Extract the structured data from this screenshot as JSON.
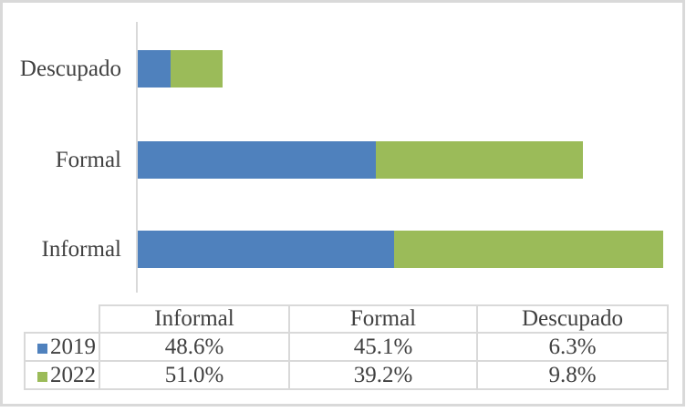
{
  "chart_data": {
    "type": "bar",
    "orientation": "horizontal",
    "stacked": true,
    "title": "",
    "xlabel": "",
    "ylabel": "",
    "grid": false,
    "xlim": [
      0,
      100
    ],
    "value_unit": "%",
    "categories": [
      "Informal",
      "Formal",
      "Descupado"
    ],
    "category_display_order_top_to_bottom": [
      "Descupado",
      "Formal",
      "Informal"
    ],
    "series": [
      {
        "name": "2019",
        "color": "#4f81bd",
        "values": [
          48.6,
          45.1,
          6.3
        ]
      },
      {
        "name": "2022",
        "color": "#9bbb59",
        "values": [
          51.0,
          39.2,
          9.8
        ]
      }
    ],
    "legend_position": "table-below"
  },
  "table": {
    "columns": [
      "Informal",
      "Formal",
      "Descupado"
    ],
    "rows": [
      {
        "year": "2019",
        "swatch_color": "#4f81bd",
        "cells": [
          "48.6%",
          "45.1%",
          "6.3%"
        ]
      },
      {
        "year": "2022",
        "swatch_color": "#9bbb59",
        "cells": [
          "51.0%",
          "39.2%",
          "9.8%"
        ]
      }
    ]
  },
  "colors": {
    "series_2019": "#4f81bd",
    "series_2022": "#9bbb59",
    "frame_border": "#d9d9d9",
    "axis_line": "#d9d9d9",
    "table_border": "#d9d9d9",
    "text": "#404040"
  }
}
